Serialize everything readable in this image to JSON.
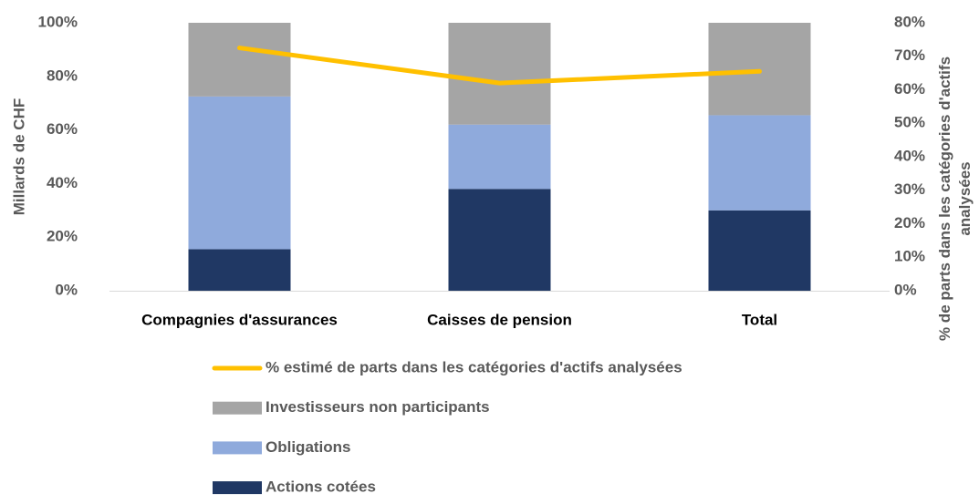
{
  "chart_data": {
    "type": "bar",
    "stacked": true,
    "ylabel": "Millards de CHF",
    "y2label": "% de parts dans les catégories d'actifs analysées",
    "categories": [
      "Compagnies d'assurances",
      "Caisses de pension",
      "Total"
    ],
    "series": [
      {
        "name": "Actions cotées",
        "color": "#203864",
        "values": [
          15.5,
          38,
          30
        ]
      },
      {
        "name": "Obligations",
        "color": "#8faadc",
        "values": [
          57,
          24,
          35.5
        ]
      },
      {
        "name": "Investisseurs non participants",
        "color": "#a5a5a5",
        "values": [
          27.5,
          38,
          34.5
        ]
      },
      {
        "name": "% estimé de parts dans les catégories d'actifs analysées",
        "color": "#ffc000",
        "type": "line",
        "axis": "y2",
        "values": [
          72.5,
          62,
          65.5
        ]
      }
    ],
    "ylim": [
      0,
      100
    ],
    "yticks": [
      {
        "value": 0,
        "label": "0%"
      },
      {
        "value": 20,
        "label": "20%"
      },
      {
        "value": 40,
        "label": "40%"
      },
      {
        "value": 60,
        "label": "60%"
      },
      {
        "value": 80,
        "label": "80%"
      },
      {
        "value": 100,
        "label": "100%"
      }
    ],
    "y2lim": [
      0,
      80
    ],
    "y2ticks": [
      {
        "value": 0,
        "label": "0%"
      },
      {
        "value": 10,
        "label": "10%"
      },
      {
        "value": 20,
        "label": "20%"
      },
      {
        "value": 30,
        "label": "30%"
      },
      {
        "value": 40,
        "label": "40%"
      },
      {
        "value": 50,
        "label": "50%"
      },
      {
        "value": 60,
        "label": "60%"
      },
      {
        "value": 70,
        "label": "70%"
      },
      {
        "value": 80,
        "label": "80%"
      }
    ],
    "grid": false
  }
}
